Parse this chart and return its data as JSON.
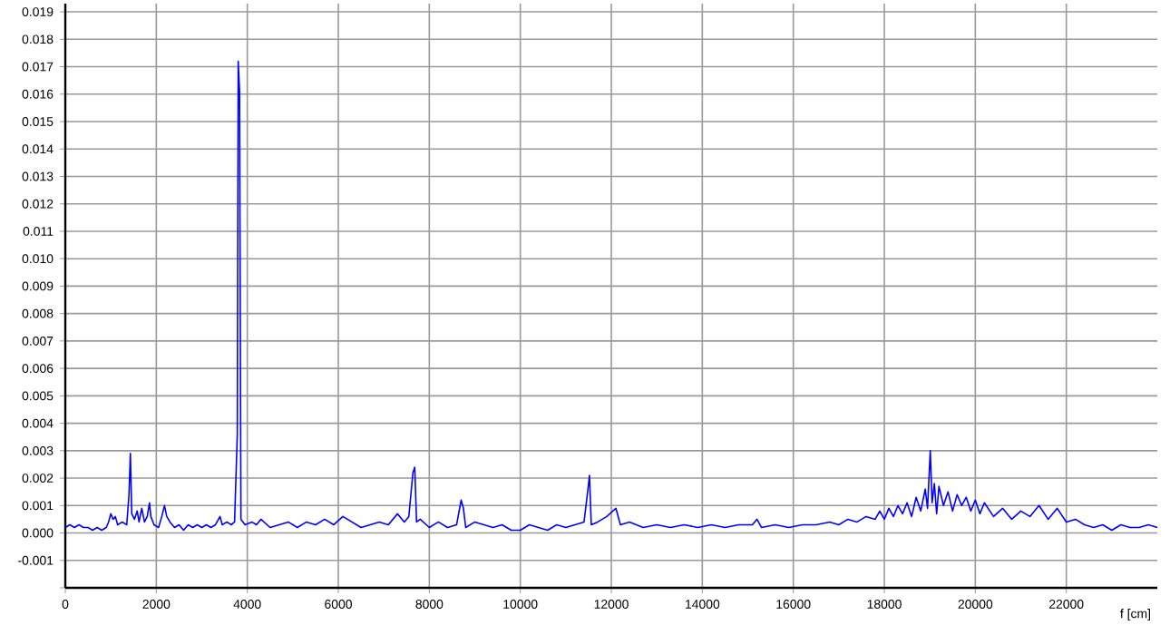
{
  "chart_data": {
    "type": "line",
    "xlabel": "f [cm]",
    "xlim": [
      0,
      24000
    ],
    "ylim": [
      -0.002,
      0.0193
    ],
    "xticks": [
      0,
      2000,
      4000,
      6000,
      8000,
      10000,
      12000,
      14000,
      16000,
      18000,
      20000,
      22000
    ],
    "yticks": [
      {
        "value": -0.002,
        "label": null
      },
      {
        "value": -0.001,
        "label": "-0.001"
      },
      {
        "value": 0,
        "label": "0.000"
      },
      {
        "value": 0.001,
        "label": "0.001"
      },
      {
        "value": 0.002,
        "label": "0.002"
      },
      {
        "value": 0.003,
        "label": "0.003"
      },
      {
        "value": 0.004,
        "label": "0.004"
      },
      {
        "value": 0.005,
        "label": "0.005"
      },
      {
        "value": 0.006,
        "label": "0.006"
      },
      {
        "value": 0.007,
        "label": "0.007"
      },
      {
        "value": 0.008,
        "label": "0.008"
      },
      {
        "value": 0.009,
        "label": "0.009"
      },
      {
        "value": 0.01,
        "label": "0.010"
      },
      {
        "value": 0.011,
        "label": "0.011"
      },
      {
        "value": 0.012,
        "label": "0.012"
      },
      {
        "value": 0.013,
        "label": "0.013"
      },
      {
        "value": 0.014,
        "label": "0.014"
      },
      {
        "value": 0.015,
        "label": "0.015"
      },
      {
        "value": 0.016,
        "label": "0.016"
      },
      {
        "value": 0.017,
        "label": "0.017"
      },
      {
        "value": 0.018,
        "label": "0.018"
      },
      {
        "value": 0.019,
        "label": "0.019"
      }
    ],
    "grid": true,
    "series": [
      {
        "color": "#0000ff",
        "x": [
          0,
          100,
          200,
          300,
          400,
          500,
          600,
          700,
          800,
          900,
          950,
          1000,
          1050,
          1100,
          1150,
          1250,
          1350,
          1400,
          1430,
          1460,
          1520,
          1580,
          1620,
          1680,
          1740,
          1800,
          1850,
          1880,
          1950,
          2050,
          2120,
          2180,
          2230,
          2300,
          2400,
          2500,
          2600,
          2700,
          2800,
          2900,
          3000,
          3100,
          3200,
          3300,
          3400,
          3450,
          3550,
          3650,
          3720,
          3780,
          3800,
          3830,
          3860,
          3950,
          4100,
          4200,
          4300,
          4500,
          4700,
          4900,
          5100,
          5300,
          5500,
          5700,
          5900,
          6100,
          6300,
          6500,
          6700,
          6900,
          7100,
          7300,
          7450,
          7550,
          7640,
          7680,
          7720,
          7800,
          8000,
          8200,
          8400,
          8600,
          8700,
          8750,
          8800,
          9000,
          9200,
          9400,
          9600,
          9800,
          10000,
          10200,
          10400,
          10600,
          10800,
          11000,
          11200,
          11400,
          11480,
          11520,
          11560,
          11700,
          11900,
          12100,
          12200,
          12400,
          12700,
          13000,
          13300,
          13600,
          13900,
          14200,
          14500,
          14800,
          15100,
          15200,
          15300,
          15600,
          15900,
          16200,
          16500,
          16800,
          17000,
          17200,
          17400,
          17600,
          17800,
          17900,
          18000,
          18100,
          18200,
          18300,
          18400,
          18500,
          18600,
          18700,
          18800,
          18900,
          18950,
          19010,
          19050,
          19100,
          19150,
          19200,
          19300,
          19400,
          19500,
          19600,
          19700,
          19800,
          19900,
          20000,
          20100,
          20200,
          20400,
          20600,
          20800,
          21000,
          21200,
          21400,
          21600,
          21800,
          22000,
          22200,
          22400,
          22600,
          22800,
          23000,
          23200,
          23400,
          23600,
          23800,
          24000
        ],
        "values": [
          0.0002,
          0.0003,
          0.0002,
          0.0003,
          0.0002,
          0.0002,
          0.0001,
          0.0002,
          0.0001,
          0.0002,
          0.0004,
          0.0007,
          0.0005,
          0.0006,
          0.0003,
          0.0004,
          0.0003,
          0.0014,
          0.0029,
          0.0007,
          0.0005,
          0.0008,
          0.0004,
          0.0009,
          0.0004,
          0.0006,
          0.0011,
          0.0006,
          0.0003,
          0.0002,
          0.0006,
          0.001,
          0.0006,
          0.0004,
          0.0002,
          0.0003,
          0.0001,
          0.0003,
          0.0002,
          0.0003,
          0.0002,
          0.0003,
          0.0002,
          0.0003,
          0.0006,
          0.0003,
          0.0004,
          0.0003,
          0.0004,
          0.0036,
          0.0172,
          0.0161,
          0.0005,
          0.0003,
          0.0004,
          0.0003,
          0.0005,
          0.0002,
          0.0003,
          0.0004,
          0.0002,
          0.0004,
          0.0003,
          0.0005,
          0.0003,
          0.0006,
          0.0004,
          0.0002,
          0.0003,
          0.0004,
          0.0003,
          0.0007,
          0.0004,
          0.0006,
          0.0022,
          0.0024,
          0.0004,
          0.0005,
          0.0002,
          0.0004,
          0.0002,
          0.0003,
          0.0012,
          0.0009,
          0.0002,
          0.0004,
          0.0003,
          0.0002,
          0.0003,
          0.0001,
          0.0001,
          0.0003,
          0.0002,
          0.0001,
          0.0003,
          0.0002,
          0.0003,
          0.0004,
          0.0015,
          0.0021,
          0.0003,
          0.0004,
          0.0006,
          0.0009,
          0.0003,
          0.0004,
          0.0002,
          0.0003,
          0.0002,
          0.0003,
          0.0002,
          0.0003,
          0.0002,
          0.0003,
          0.0003,
          0.0005,
          0.0002,
          0.0003,
          0.0002,
          0.0003,
          0.0003,
          0.0004,
          0.0003,
          0.0005,
          0.0004,
          0.0006,
          0.0005,
          0.0008,
          0.0005,
          0.0009,
          0.0006,
          0.001,
          0.0007,
          0.0011,
          0.0006,
          0.0013,
          0.0008,
          0.0016,
          0.0009,
          0.003,
          0.0011,
          0.0018,
          0.0007,
          0.0017,
          0.001,
          0.0015,
          0.0008,
          0.0014,
          0.001,
          0.0013,
          0.0008,
          0.0012,
          0.0007,
          0.0011,
          0.0006,
          0.0009,
          0.0005,
          0.0008,
          0.0006,
          0.001,
          0.0005,
          0.0009,
          0.0004,
          0.0005,
          0.0003,
          0.0002,
          0.0003,
          0.0001,
          0.0003,
          0.0002,
          0.0002,
          0.0003,
          0.0002
        ]
      }
    ]
  }
}
